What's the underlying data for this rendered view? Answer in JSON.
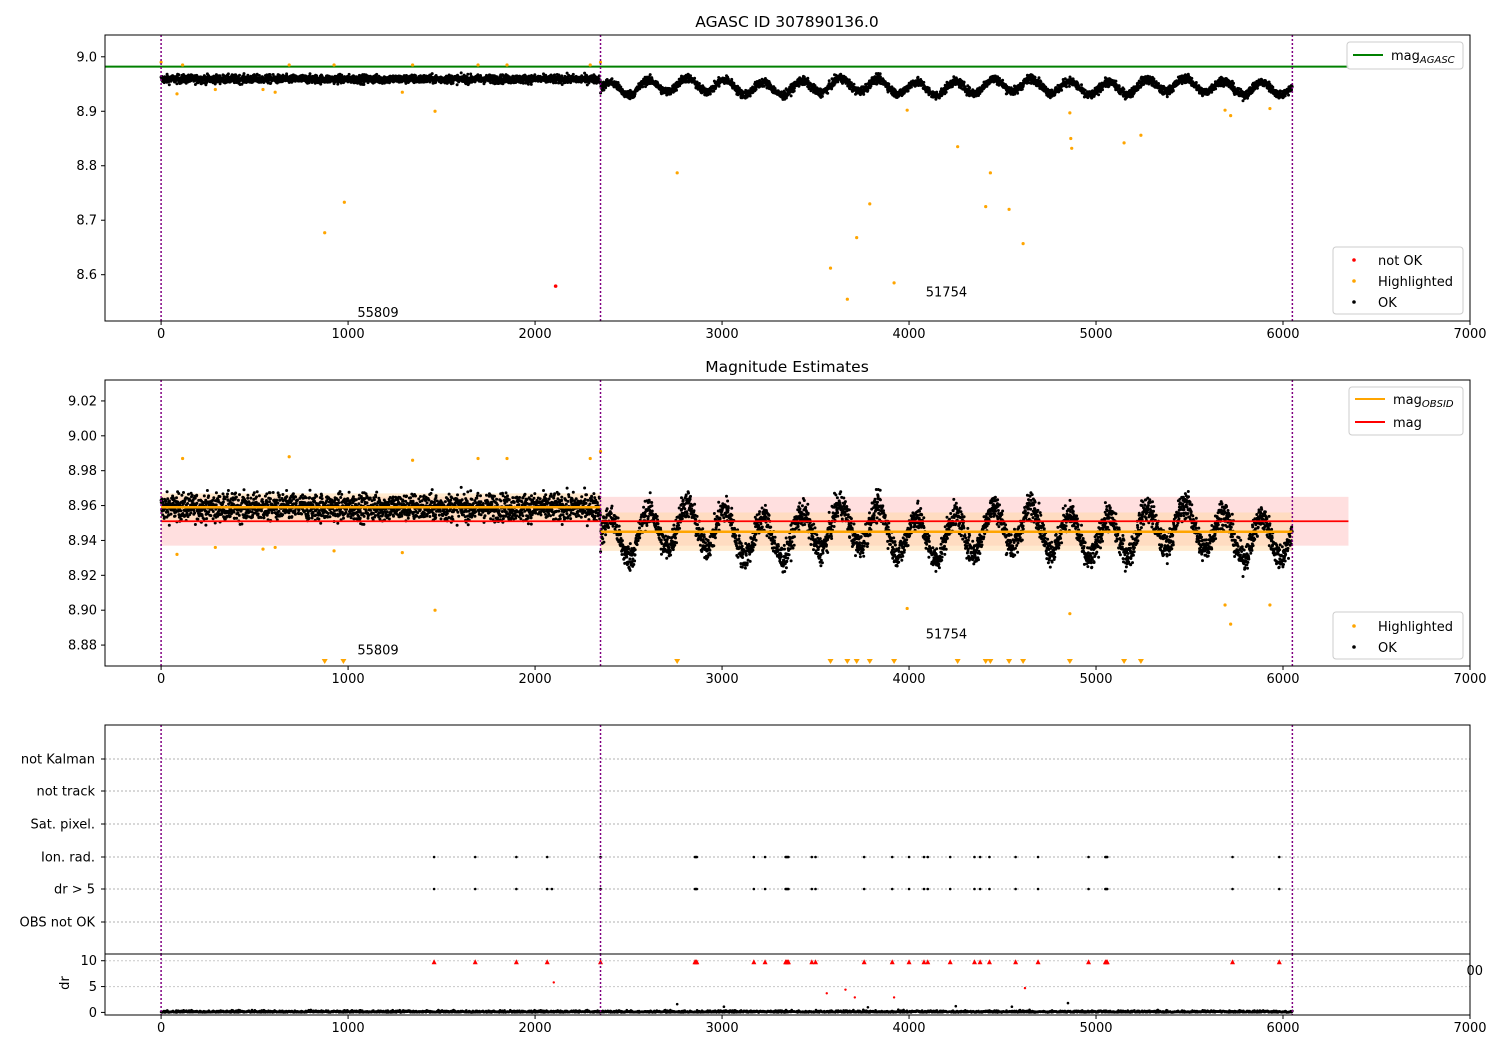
{
  "figure": {
    "title_top": "AGASC ID 307890136.0",
    "title_mid": "Magnitude Estimates"
  },
  "colors": {
    "ok": "#000000",
    "highlighted": "#ffa500",
    "not_ok": "#ff0000",
    "agasc_line": "#008000",
    "mag_line": "#ff0000",
    "mag_obsid_line": "#ffa500",
    "vline": "#800080",
    "band_mag": "#ffc0c0",
    "band_obsid": "#ffd9a8"
  },
  "legends": {
    "top_lines": [
      {
        "label": "mag",
        "sub": "AGASC",
        "color": "#008000"
      }
    ],
    "top_points": [
      {
        "label": "not OK",
        "color": "#ff0000"
      },
      {
        "label": "Highlighted",
        "color": "#ffa500"
      },
      {
        "label": "OK",
        "color": "#000000"
      }
    ],
    "mid_lines": [
      {
        "label": "mag",
        "sub": "OBSID",
        "color": "#ffa500"
      },
      {
        "label": "mag",
        "sub": "",
        "color": "#ff0000"
      }
    ],
    "mid_points": [
      {
        "label": "Highlighted",
        "color": "#ffa500"
      },
      {
        "label": "OK",
        "color": "#000000"
      }
    ]
  },
  "chart_data": [
    {
      "type": "scatter",
      "title": "AGASC ID 307890136.0",
      "xlim": [
        -300,
        7000
      ],
      "ylim": [
        8.515,
        9.04
      ],
      "xticks": [
        0,
        1000,
        2000,
        3000,
        4000,
        5000,
        6000,
        7000
      ],
      "yticks": [
        8.6,
        8.7,
        8.8,
        8.9,
        9.0
      ],
      "agasc_mag": 8.982,
      "vlines": [
        0,
        2350,
        6050
      ],
      "annotations": [
        {
          "text": "55809",
          "x": 1160,
          "y": 8.53
        },
        {
          "text": "51754",
          "x": 4200,
          "y": 8.567
        }
      ],
      "highlighted": [
        [
          0,
          8.99
        ],
        [
          85,
          8.932
        ],
        [
          115,
          8.985
        ],
        [
          290,
          8.94
        ],
        [
          545,
          8.94
        ],
        [
          610,
          8.935
        ],
        [
          685,
          8.985
        ],
        [
          875,
          8.677
        ],
        [
          925,
          8.985
        ],
        [
          980,
          8.733
        ],
        [
          1290,
          8.935
        ],
        [
          1345,
          8.985
        ],
        [
          1465,
          8.9
        ],
        [
          1695,
          8.985
        ],
        [
          1850,
          8.985
        ],
        [
          2295,
          8.985
        ],
        [
          2350,
          8.99
        ],
        [
          2760,
          8.787
        ],
        [
          3580,
          8.612
        ],
        [
          3670,
          8.555
        ],
        [
          3720,
          8.668
        ],
        [
          3790,
          8.73
        ],
        [
          3920,
          8.585
        ],
        [
          3990,
          8.902
        ],
        [
          4260,
          8.835
        ],
        [
          4410,
          8.725
        ],
        [
          4435,
          8.787
        ],
        [
          4535,
          8.72
        ],
        [
          4610,
          8.657
        ],
        [
          4860,
          8.897
        ],
        [
          4865,
          8.85
        ],
        [
          4870,
          8.832
        ],
        [
          5150,
          8.842
        ],
        [
          5240,
          8.856
        ],
        [
          5690,
          8.902
        ],
        [
          5720,
          8.892
        ],
        [
          5930,
          8.905
        ]
      ],
      "not_ok": [
        [
          2110,
          8.579
        ]
      ]
    },
    {
      "type": "scatter",
      "title": "Magnitude Estimates",
      "xlim": [
        -300,
        7000
      ],
      "ylim": [
        8.868,
        9.032
      ],
      "xticks": [
        0,
        1000,
        2000,
        3000,
        4000,
        5000,
        6000,
        7000
      ],
      "yticks": [
        8.88,
        8.9,
        8.92,
        8.94,
        8.96,
        8.98,
        9.0,
        9.02
      ],
      "mag": 8.951,
      "mag_band": [
        8.937,
        8.965
      ],
      "mag_obsid": [
        {
          "x0": 0,
          "x1": 2350,
          "value": 8.959,
          "band": [
            8.951,
            8.967
          ]
        },
        {
          "x0": 2350,
          "x1": 6050,
          "value": 8.945,
          "band": [
            8.934,
            8.956
          ]
        }
      ],
      "vlines": [
        0,
        2350,
        6050
      ],
      "annotations": [
        {
          "text": "55809",
          "x": 1160,
          "y": 8.877
        },
        {
          "text": "51754",
          "x": 4200,
          "y": 8.886
        }
      ],
      "highlighted": [
        [
          85,
          8.932
        ],
        [
          115,
          8.987
        ],
        [
          290,
          8.936
        ],
        [
          545,
          8.935
        ],
        [
          610,
          8.936
        ],
        [
          685,
          8.988
        ],
        [
          925,
          8.934
        ],
        [
          1290,
          8.933
        ],
        [
          1345,
          8.986
        ],
        [
          1465,
          8.9
        ],
        [
          1695,
          8.987
        ],
        [
          1850,
          8.987
        ],
        [
          2295,
          8.987
        ],
        [
          2350,
          8.991
        ],
        [
          3990,
          8.901
        ],
        [
          4860,
          8.898
        ],
        [
          5690,
          8.903
        ],
        [
          5720,
          8.892
        ],
        [
          5930,
          8.903
        ]
      ],
      "offscale_markers": [
        875,
        975,
        2760,
        3580,
        3670,
        3720,
        3790,
        3920,
        4260,
        4410,
        4435,
        4535,
        4610,
        4860,
        5150,
        5240
      ]
    },
    {
      "type": "scatter",
      "title": "",
      "categories": [
        "not Kalman",
        "not track",
        "Sat. pixel.",
        "Ion. rad.",
        "dr > 5",
        "OBS not OK"
      ],
      "flag_x": [
        1460,
        1680,
        1900,
        2065,
        2350,
        2855,
        2860,
        2865,
        3170,
        3230,
        3340,
        3345,
        3350,
        3355,
        3480,
        3500,
        3760,
        3910,
        4000,
        4080,
        4100,
        4220,
        4350,
        4380,
        4430,
        4570,
        4690,
        4960,
        5050,
        5055,
        5060,
        5730,
        5980
      ],
      "dr_flag_extra_x": [
        2090
      ],
      "vlines": [
        0,
        2350,
        6050
      ]
    },
    {
      "type": "scatter",
      "title": "",
      "ylabel": "dr",
      "xlim": [
        -300,
        7000
      ],
      "ylim": [
        -0.5,
        11.3
      ],
      "xticks": [
        0,
        1000,
        2000,
        3000,
        4000,
        5000,
        6000,
        7000
      ],
      "yticks": [
        0,
        5,
        10
      ],
      "clipped_marker_y": 9.7,
      "red_points": [
        [
          2100,
          5.8
        ],
        [
          3560,
          3.7
        ],
        [
          3660,
          4.4
        ],
        [
          3710,
          2.9
        ],
        [
          3920,
          2.9
        ],
        [
          4620,
          4.7
        ]
      ],
      "vlines": [
        0,
        2350,
        6050
      ],
      "stray_tick": "00"
    }
  ]
}
